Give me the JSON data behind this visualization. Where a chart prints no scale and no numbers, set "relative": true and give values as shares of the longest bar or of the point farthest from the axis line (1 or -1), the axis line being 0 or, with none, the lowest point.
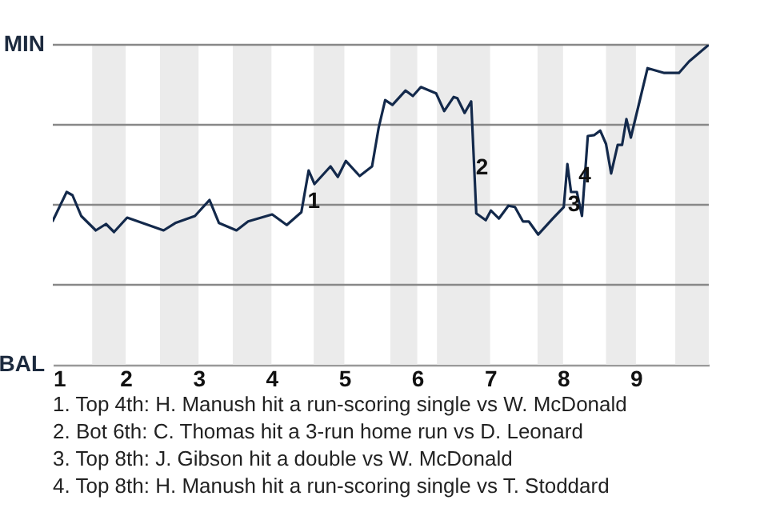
{
  "chart_data": {
    "type": "line",
    "relative": true,
    "x": [
      1,
      1.19,
      1.27,
      1.39,
      1.59,
      1.73,
      1.84,
      2.02,
      2.52,
      2.68,
      2.95,
      3.15,
      3.28,
      3.52,
      3.68,
      4.01,
      4.21,
      4.41,
      4.51,
      4.59,
      4.81,
      4.91,
      5.02,
      5.21,
      5.38,
      5.47,
      5.56,
      5.66,
      5.84,
      5.94,
      6.05,
      6.26,
      6.37,
      6.5,
      6.55,
      6.65,
      6.74,
      6.78,
      6.81,
      6.94,
      7.01,
      7.12,
      7.25,
      7.34,
      7.45,
      7.53,
      7.66,
      7.86,
      8.01,
      8.06,
      8.11,
      8.19,
      8.26,
      8.34,
      8.43,
      8.51,
      8.59,
      8.66,
      8.75,
      8.81,
      8.87,
      8.93,
      9.16,
      9.39,
      9.59,
      9.73,
      10
    ],
    "series": [
      {
        "color": "#13294b",
        "values": [
          0.45,
          0.54,
          0.53,
          0.465,
          0.42,
          0.44,
          0.415,
          0.46,
          0.42,
          0.443,
          0.465,
          0.515,
          0.443,
          0.42,
          0.448,
          0.47,
          0.437,
          0.477,
          0.607,
          0.565,
          0.62,
          0.587,
          0.637,
          0.59,
          0.62,
          0.74,
          0.827,
          0.812,
          0.857,
          0.84,
          0.868,
          0.848,
          0.793,
          0.837,
          0.833,
          0.787,
          0.823,
          0.623,
          0.473,
          0.452,
          0.482,
          0.457,
          0.497,
          0.493,
          0.448,
          0.448,
          0.407,
          0.457,
          0.493,
          0.627,
          0.54,
          0.54,
          0.465,
          0.715,
          0.718,
          0.732,
          0.69,
          0.598,
          0.687,
          0.687,
          0.768,
          0.71,
          0.927,
          0.912,
          0.912,
          0.948,
          1
        ]
      }
    ],
    "xlim": [
      1,
      10
    ],
    "xticks": [
      1,
      2,
      3,
      4,
      5,
      6,
      7,
      8,
      9
    ],
    "ref_lines": [
      {
        "axis": "y",
        "value": 0.25,
        "color": "#888888"
      },
      {
        "axis": "y",
        "value": 0.5,
        "color": "#888888"
      },
      {
        "axis": "y",
        "value": 0.75,
        "color": "#888888"
      },
      {
        "axis": "y",
        "value": 1,
        "color": "#888888"
      }
    ],
    "bands": [
      {
        "axis": "x",
        "from": 1.54,
        "to": 2,
        "color": "#ebebeb"
      },
      {
        "axis": "x",
        "from": 2.47,
        "to": 3,
        "color": "#ebebeb"
      },
      {
        "axis": "x",
        "from": 3.47,
        "to": 4,
        "color": "#ebebeb"
      },
      {
        "axis": "x",
        "from": 4.58,
        "to": 5,
        "color": "#ebebeb"
      },
      {
        "axis": "x",
        "from": 5.63,
        "to": 6,
        "color": "#ebebeb"
      },
      {
        "axis": "x",
        "from": 6.27,
        "to": 7,
        "color": "#ebebeb"
      },
      {
        "axis": "x",
        "from": 7.65,
        "to": 8,
        "color": "#ebebeb"
      },
      {
        "axis": "x",
        "from": 8.59,
        "to": 9,
        "color": "#ebebeb"
      },
      {
        "axis": "x",
        "from": 9.54,
        "to": 10,
        "color": "#ebebeb"
      }
    ],
    "annotations": [
      "MIN",
      "BAL",
      {
        "text": "1",
        "x": 4.58,
        "y": 0.51
      },
      {
        "text": "2",
        "x": 6.89,
        "y": 0.615
      },
      {
        "text": "3",
        "x": 8.15,
        "y": 0.5
      },
      {
        "text": "4",
        "x": 8.3,
        "y": 0.59
      },
      "1. Top 4th: H. Manush hit a run-scoring single vs W. McDonald",
      "2. Bot 6th: C. Thomas hit a 3-run home run vs D. Leonard",
      "3. Top 8th: J. Gibson hit a double vs W. McDonald",
      "4. Top 8th: H. Manush hit a run-scoring single vs T. Stoddard"
    ]
  }
}
